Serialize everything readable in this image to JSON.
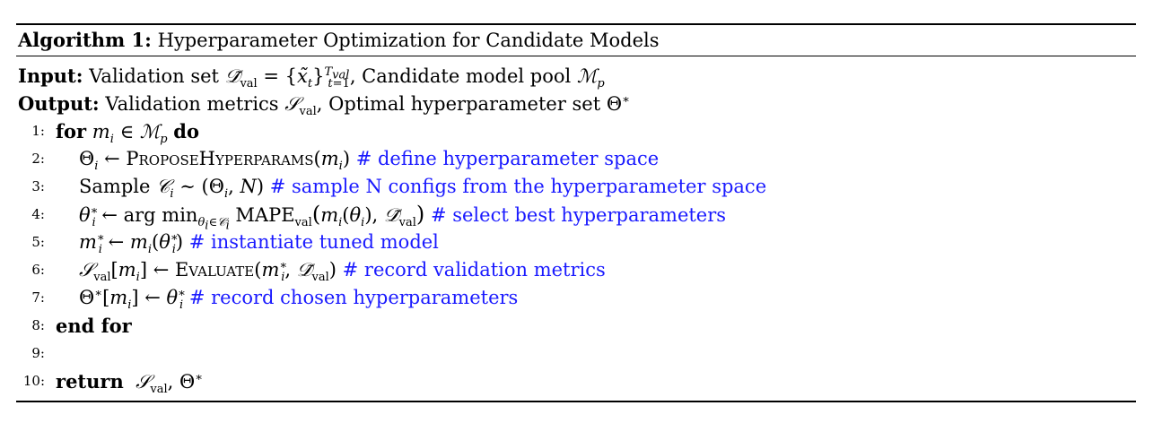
{
  "algorithm": {
    "label": "Algorithm 1:",
    "title": "Hyperparameter Optimization for Candidate Models",
    "input_label": "Input:",
    "input_text": "Validation set 𝒟̃val = {x̃t}t=1Tval, Candidate model pool ℳp",
    "output_label": "Output:",
    "output_text": "Validation metrics 𝒮val, Optimal hyperparameter set Θ*",
    "lines": [
      {
        "num": "1:",
        "kw": "for",
        "code": "mi ∈ ℳp",
        "kw_end": "do",
        "comment": ""
      },
      {
        "num": "2:",
        "code": "Θi ← ProposeHyperparams(mi)",
        "comment": "# define hyperparameter space"
      },
      {
        "num": "3:",
        "code": "Sample 𝒞i ∼ (Θi, N)",
        "comment": "# sample N configs from the hyperparameter space"
      },
      {
        "num": "4:",
        "code": "θi* ← arg minθi∈𝒞i MAPEval(mi(θi), 𝒟̃val)",
        "comment": "# select best hyperparameters"
      },
      {
        "num": "5:",
        "code": "mi* ← mi(θi*)",
        "comment": "# instantiate tuned model"
      },
      {
        "num": "6:",
        "code": "𝒮val[mi] ← Evaluate(mi*, 𝒟̃val)",
        "comment": "# record validation metrics"
      },
      {
        "num": "7:",
        "code": "Θ*[mi] ← θi*",
        "comment": "# record chosen hyperparameters"
      },
      {
        "num": "8:",
        "kw": "end for",
        "code": "",
        "comment": ""
      },
      {
        "num": "9:",
        "code": "",
        "comment": ""
      },
      {
        "num": "10:",
        "kw": "return",
        "code": "𝒮val, Θ*",
        "comment": ""
      }
    ]
  }
}
